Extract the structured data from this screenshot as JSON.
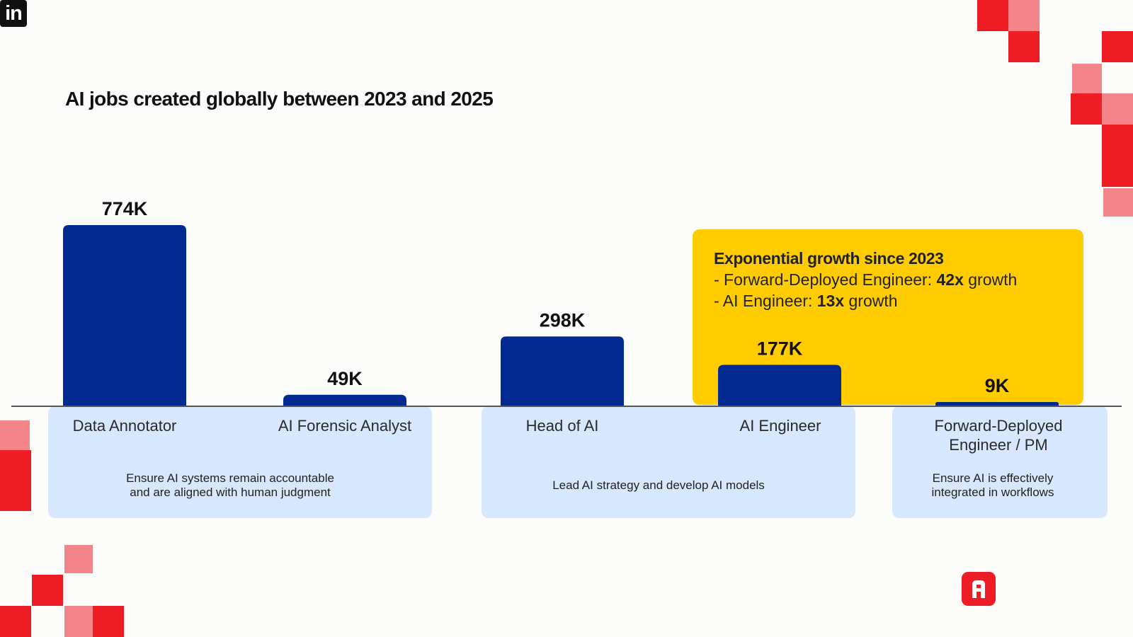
{
  "title": "AI jobs created globally between 2023 and 2025",
  "brand": {
    "linkedin_text": "in",
    "accent_red": "#ee1c25",
    "accent_pink": "#f2848a",
    "bar_color": "#032a91",
    "highlight_color": "#ffcc00",
    "desc_bg": "#d7e7fd"
  },
  "highlight": {
    "heading": "Exponential growth since 2023",
    "line1_prefix": "- Forward-Deployed Engineer: ",
    "line1_value": "42x",
    "line1_suffix": " growth",
    "line2_prefix": "- AI Engineer: ",
    "line2_value": "13x",
    "line2_suffix": " growth"
  },
  "descriptions": [
    {
      "text_line1": "Ensure AI systems remain accountable",
      "text_line2": "and are aligned with human judgment"
    },
    {
      "text_line1": "Lead AI strategy and develop AI models",
      "text_line2": ""
    },
    {
      "text_line1": "Ensure AI is effectively",
      "text_line2": "integrated in workflows"
    }
  ],
  "chart_data": {
    "type": "bar",
    "title": "AI jobs created globally between 2023 and 2025",
    "categories": [
      "Data Annotator",
      "AI Forensic Analyst",
      "Head of AI",
      "AI Engineer",
      "Forward-Deployed Engineer / PM"
    ],
    "values": [
      774,
      49,
      298,
      177,
      9
    ],
    "value_labels": [
      "774K",
      "49K",
      "298K",
      "177K",
      "9K"
    ],
    "unit": "thousand jobs",
    "xlabel": "",
    "ylabel": "",
    "ylim": [
      0,
      774
    ],
    "grid": false
  }
}
